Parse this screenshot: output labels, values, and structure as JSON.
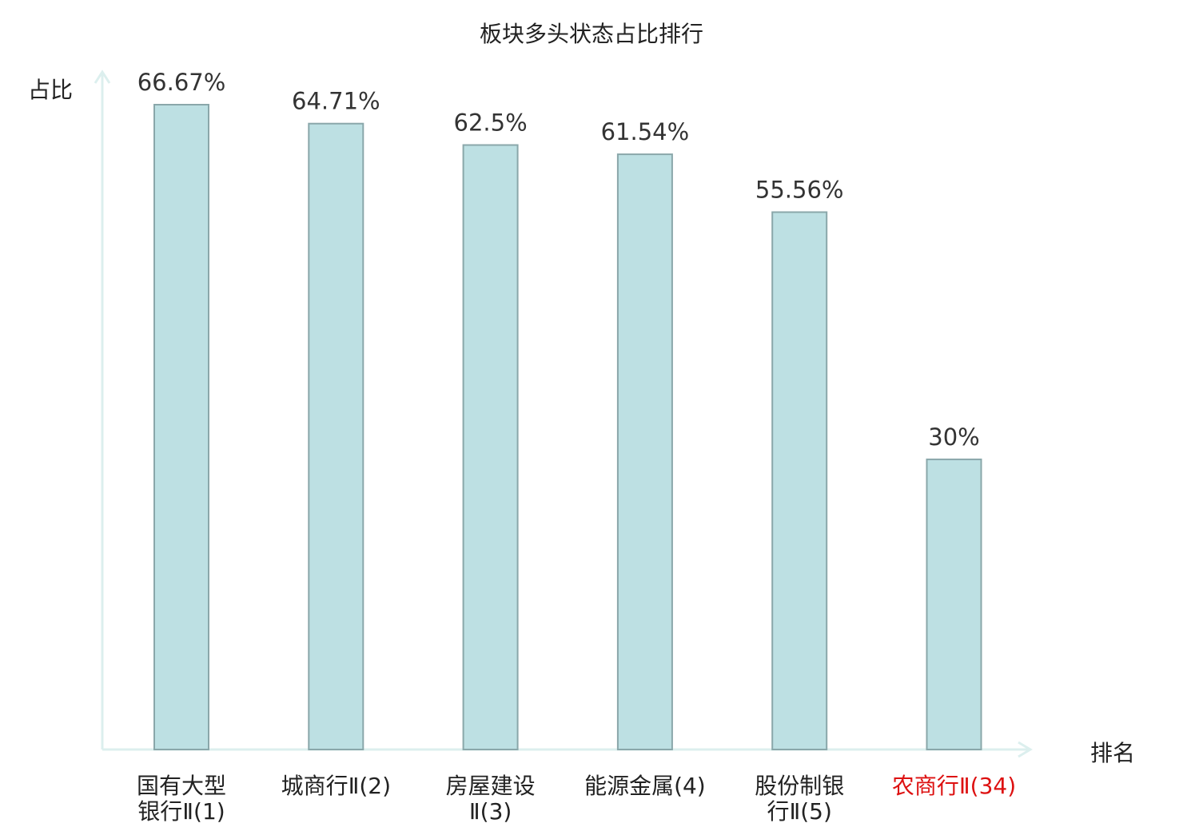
{
  "chart_data": {
    "type": "bar",
    "title": "板块多头状态占比排行",
    "ylabel": "占比",
    "xlabel": "排名",
    "ylim": [
      0,
      70
    ],
    "grid": false,
    "categories": [
      [
        "国有大型",
        "银行Ⅱ(1)"
      ],
      [
        "城商行Ⅱ(2)"
      ],
      [
        "房屋建设",
        "Ⅱ(3)"
      ],
      [
        "能源金属(4)"
      ],
      [
        "股份制银",
        "行Ⅱ(5)"
      ],
      [
        "农商行Ⅱ(34)"
      ]
    ],
    "values": [
      66.67,
      64.71,
      62.5,
      61.54,
      55.56,
      30
    ],
    "value_labels": [
      "66.67%",
      "64.71%",
      "62.5%",
      "61.54%",
      "55.56%",
      "30%"
    ],
    "highlight_index": 5,
    "colors": {
      "bar_fill": "#bde0e3",
      "bar_stroke": "#8aa7aa",
      "axis": "#dcefee",
      "label": "#222222",
      "value_label": "#333333",
      "highlight": "#dd1111"
    }
  }
}
